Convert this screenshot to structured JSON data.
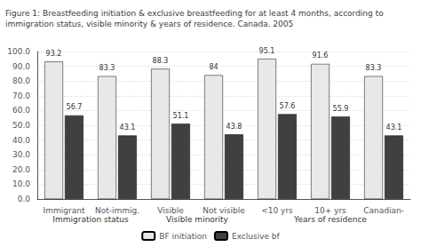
{
  "chart_data": {
    "type": "bar",
    "title": "Figure 1: Breastfeeding initiation & exclusive breastfeeding for at least 4 months, according to\nimmigration status, visible minority & years of residence. Canada. 2005",
    "categories": [
      "Immigrant",
      "Not-immig.",
      "Visible",
      "Not visible",
      "<10 yrs",
      "10+ yrs",
      "Canadian-"
    ],
    "series": [
      {
        "name": "BF initiation",
        "color": "#e8e8e8",
        "values": [
          93.2,
          83.3,
          88.3,
          84.0,
          95.1,
          91.6,
          83.3
        ]
      },
      {
        "name": "Exclusive bf",
        "color": "#404040",
        "values": [
          56.7,
          43.1,
          51.1,
          43.8,
          57.6,
          55.9,
          43.1
        ]
      }
    ],
    "sections": [
      {
        "label": "Immigration status",
        "categories": [
          "Immigrant",
          "Not-immig."
        ]
      },
      {
        "label": "Visible minority",
        "categories": [
          "Visible",
          "Not visible"
        ]
      },
      {
        "label": "Years of residence",
        "categories": [
          "<10 yrs",
          "10+ yrs",
          "Canadian-"
        ]
      }
    ],
    "ylim": [
      0,
      100
    ],
    "yticks": [
      {
        "value": 0,
        "label": "0.0"
      },
      {
        "value": 10,
        "label": "10.0"
      },
      {
        "value": 20,
        "label": "20.0"
      },
      {
        "value": 30,
        "label": "30.0"
      },
      {
        "value": 40,
        "label": "40.0"
      },
      {
        "value": 50,
        "label": "50.0"
      },
      {
        "value": 60,
        "label": "60.0"
      },
      {
        "value": 70,
        "label": "70.0"
      },
      {
        "value": 80,
        "label": "80.0"
      },
      {
        "value": 90,
        "label": "90.0"
      },
      {
        "value": 100,
        "label": "100.0"
      }
    ],
    "grid": true,
    "legend": "bottom",
    "data_labels": true
  }
}
